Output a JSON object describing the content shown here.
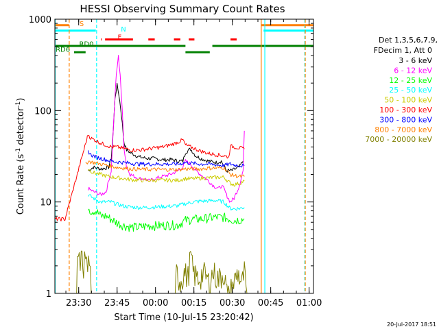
{
  "chart_data": {
    "type": "line",
    "title": "HESSI Observing Summary Count Rates",
    "xlabel": "Start Time (10-Jul-15 23:20:42)",
    "ylabel_main": "Count Rate (s",
    "ylabel_sup1": "-1",
    "ylabel_mid": " detector",
    "ylabel_sup2": "-1",
    "ylabel_end": ")",
    "footer": "20-Jul-2017 18:51",
    "y_scale": "log",
    "ylim": [
      1,
      1000
    ],
    "xlim_minutes": [
      0,
      101
    ],
    "x_ticks": [
      {
        "label": "23:30",
        "minute": 9.3
      },
      {
        "label": "23:45",
        "minute": 24.3
      },
      {
        "label": "00:00",
        "minute": 39.3
      },
      {
        "label": "00:15",
        "minute": 54.3
      },
      {
        "label": "00:30",
        "minute": 69.3
      },
      {
        "label": "00:45",
        "minute": 84.3
      },
      {
        "label": "01:00",
        "minute": 99.3
      }
    ],
    "y_ticks": [
      {
        "label": "1",
        "value": 1
      },
      {
        "label": "10",
        "value": 10
      },
      {
        "label": "100",
        "value": 100
      },
      {
        "label": "1000",
        "value": 1000
      }
    ],
    "legend_title_1": "Det 1,3,5,6,7,9,",
    "legend_title_2": "FDecim 1, Att 0",
    "series": [
      {
        "name": "3 - 6 keV",
        "color": "#000000",
        "points": [
          [
            13,
            22
          ],
          [
            15,
            24
          ],
          [
            18,
            23
          ],
          [
            21,
            24
          ],
          [
            22,
            30
          ],
          [
            22.8,
            60
          ],
          [
            23.5,
            140
          ],
          [
            24.3,
            190
          ],
          [
            25,
            150
          ],
          [
            26,
            90
          ],
          [
            27,
            45
          ],
          [
            28,
            37
          ],
          [
            30,
            34
          ],
          [
            33,
            31
          ],
          [
            36,
            30
          ],
          [
            38,
            30
          ],
          [
            42,
            29
          ],
          [
            46,
            29
          ],
          [
            48,
            28
          ],
          [
            50,
            28
          ],
          [
            51,
            35
          ],
          [
            53,
            38
          ],
          [
            55,
            32
          ],
          [
            57,
            30
          ],
          [
            60,
            28
          ],
          [
            63,
            27
          ],
          [
            65,
            28
          ],
          [
            67,
            22
          ],
          [
            69,
            22
          ],
          [
            72,
            24
          ],
          [
            73.5,
            28
          ]
        ]
      },
      {
        "name": "6 - 12 keV",
        "color": "#ff00ff",
        "points": [
          [
            13,
            14
          ],
          [
            15,
            13
          ],
          [
            18,
            12
          ],
          [
            20,
            13
          ],
          [
            22,
            22
          ],
          [
            23,
            80
          ],
          [
            24,
            250
          ],
          [
            24.8,
            390
          ],
          [
            25.5,
            250
          ],
          [
            26.3,
            100
          ],
          [
            27,
            40
          ],
          [
            28,
            24
          ],
          [
            29.5,
            20
          ],
          [
            31,
            19
          ],
          [
            33,
            18
          ],
          [
            35,
            18
          ],
          [
            37,
            17
          ],
          [
            39,
            18
          ],
          [
            42,
            19
          ],
          [
            45,
            20
          ],
          [
            48,
            22
          ],
          [
            50,
            24
          ],
          [
            51,
            28
          ],
          [
            53,
            26
          ],
          [
            55,
            22
          ],
          [
            56,
            21
          ],
          [
            58,
            19
          ],
          [
            60,
            17
          ],
          [
            62,
            15
          ],
          [
            64,
            14
          ],
          [
            65,
            15
          ],
          [
            66,
            14
          ],
          [
            67,
            12
          ],
          [
            68.5,
            10
          ],
          [
            70,
            11
          ],
          [
            72,
            15
          ],
          [
            73.5,
            22
          ],
          [
            74,
            60
          ]
        ]
      },
      {
        "name": "12 - 25 keV",
        "color": "#00ff00",
        "points": [
          [
            13,
            9
          ],
          [
            14,
            8
          ],
          [
            16,
            8
          ],
          [
            18,
            7
          ],
          [
            20,
            7
          ],
          [
            22,
            6.5
          ],
          [
            24,
            6
          ],
          [
            27,
            5.5
          ],
          [
            30,
            5.3
          ],
          [
            33,
            5.3
          ],
          [
            36,
            5.5
          ],
          [
            40,
            5.5
          ],
          [
            44,
            5.6
          ],
          [
            48,
            5.6
          ],
          [
            51,
            6.3
          ],
          [
            54,
            6.5
          ],
          [
            57,
            6.5
          ],
          [
            60,
            6.7
          ],
          [
            63,
            6.8
          ],
          [
            66,
            6.8
          ],
          [
            68.5,
            6.5
          ],
          [
            70,
            6.3
          ],
          [
            72,
            6.4
          ],
          [
            74,
            6.5
          ]
        ]
      },
      {
        "name": "25 - 50 keV",
        "color": "#00ffff",
        "points": [
          [
            13,
            12
          ],
          [
            15,
            11
          ],
          [
            18,
            10
          ],
          [
            20,
            10
          ],
          [
            22,
            10
          ],
          [
            24,
            9.5
          ],
          [
            27,
            9
          ],
          [
            30,
            8.8
          ],
          [
            33,
            8.7
          ],
          [
            36,
            8.7
          ],
          [
            39,
            8.8
          ],
          [
            42,
            8.9
          ],
          [
            45,
            9
          ],
          [
            48,
            9.1
          ],
          [
            51,
            9.6
          ],
          [
            54,
            10
          ],
          [
            57,
            10.2
          ],
          [
            60,
            10.3
          ],
          [
            63,
            10.4
          ],
          [
            66,
            10
          ],
          [
            68.5,
            8.5
          ],
          [
            70,
            8.4
          ],
          [
            72,
            8.5
          ],
          [
            74,
            8.7
          ]
        ]
      },
      {
        "name": "50 - 100 keV",
        "color": "#cccc00",
        "points": [
          [
            13,
            23
          ],
          [
            15,
            21
          ],
          [
            18,
            20
          ],
          [
            21,
            19
          ],
          [
            24,
            18.5
          ],
          [
            27,
            18
          ],
          [
            30,
            17.5
          ],
          [
            33,
            17.3
          ],
          [
            36,
            17.2
          ],
          [
            40,
            17.3
          ],
          [
            44,
            17.3
          ],
          [
            48,
            17.3
          ],
          [
            51,
            18
          ],
          [
            54,
            18
          ],
          [
            57,
            18.2
          ],
          [
            60,
            18.4
          ],
          [
            63,
            18.6
          ],
          [
            66,
            18.7
          ],
          [
            68.5,
            16
          ],
          [
            70,
            15.5
          ],
          [
            72,
            16
          ],
          [
            74,
            17
          ]
        ]
      },
      {
        "name": "100 - 300 keV",
        "color": "#ff0000",
        "points": [
          [
            0,
            6.5
          ],
          [
            1.5,
            6.5
          ],
          [
            3,
            6.5
          ],
          [
            4,
            6.5
          ],
          [
            13,
            55
          ],
          [
            14,
            50
          ],
          [
            16,
            47
          ],
          [
            18,
            44
          ],
          [
            20,
            42
          ],
          [
            22,
            40
          ],
          [
            24,
            40
          ],
          [
            26,
            39
          ],
          [
            28,
            38
          ],
          [
            30,
            37
          ],
          [
            33,
            37
          ],
          [
            36,
            38
          ],
          [
            39,
            39
          ],
          [
            42,
            40
          ],
          [
            45,
            42
          ],
          [
            48,
            45
          ],
          [
            50,
            48
          ],
          [
            51,
            42
          ],
          [
            53,
            40
          ],
          [
            55,
            38
          ],
          [
            57,
            36
          ],
          [
            60,
            34
          ],
          [
            63,
            33
          ],
          [
            66,
            32
          ],
          [
            68,
            31
          ],
          [
            68.5,
            41
          ],
          [
            70,
            40
          ],
          [
            72,
            39
          ],
          [
            74,
            38
          ]
        ]
      },
      {
        "name": "300 - 800 keV",
        "color": "#0000ff",
        "points": [
          [
            13,
            36
          ],
          [
            14,
            33
          ],
          [
            16,
            31
          ],
          [
            18,
            30
          ],
          [
            20,
            29
          ],
          [
            22,
            28
          ],
          [
            24,
            27.5
          ],
          [
            27,
            27
          ],
          [
            30,
            26.5
          ],
          [
            33,
            26
          ],
          [
            36,
            26
          ],
          [
            40,
            26
          ],
          [
            44,
            26
          ],
          [
            48,
            26
          ],
          [
            51,
            27
          ],
          [
            54,
            26.5
          ],
          [
            57,
            26
          ],
          [
            60,
            26
          ],
          [
            63,
            25.5
          ],
          [
            66,
            25
          ],
          [
            68.5,
            26
          ],
          [
            70,
            25.5
          ],
          [
            72,
            25
          ],
          [
            74,
            25
          ]
        ]
      },
      {
        "name": "800 - 7000 keV",
        "color": "#ff8000",
        "points": [
          [
            12,
            26
          ],
          [
            13,
            28
          ],
          [
            15,
            27
          ],
          [
            18,
            26
          ],
          [
            21,
            25
          ],
          [
            24,
            24
          ],
          [
            27,
            23.5
          ],
          [
            30,
            23
          ],
          [
            33,
            22.8
          ],
          [
            36,
            22.7
          ],
          [
            40,
            22.7
          ],
          [
            44,
            22.6
          ],
          [
            48,
            22.6
          ],
          [
            51,
            23
          ],
          [
            54,
            23
          ],
          [
            57,
            23
          ],
          [
            60,
            23.5
          ],
          [
            63,
            23.5
          ],
          [
            66,
            23.8
          ],
          [
            68.5,
            20
          ],
          [
            70,
            19.5
          ],
          [
            72,
            19
          ],
          [
            74,
            19
          ]
        ]
      },
      {
        "name": "7000 - 20000 keV",
        "color": "#808000",
        "points": [
          [
            8.5,
            1
          ],
          [
            8.8,
            2.9
          ],
          [
            9.5,
            2.4
          ],
          [
            10.3,
            2.9
          ],
          [
            11.2,
            2.2
          ],
          [
            12,
            2.9
          ],
          [
            12.8,
            2
          ],
          [
            13.5,
            2.9
          ],
          [
            14.2,
            1
          ],
          [
            47,
            1
          ],
          [
            47.5,
            1.9
          ],
          [
            49,
            1.5
          ],
          [
            50.5,
            1.9
          ],
          [
            52,
            1.7
          ],
          [
            53,
            2.9
          ],
          [
            54,
            1.9
          ],
          [
            56,
            1.6
          ],
          [
            58,
            1.9
          ],
          [
            60,
            1.5
          ],
          [
            62,
            1.9
          ],
          [
            64,
            1.6
          ],
          [
            66,
            1.9
          ],
          [
            67.5,
            1
          ],
          [
            71.5,
            1.9
          ],
          [
            73,
            1.4
          ],
          [
            74,
            1.9
          ],
          [
            75,
            1
          ]
        ]
      }
    ],
    "state_labels": [
      {
        "label": "S",
        "minute": 9.6,
        "value": 840,
        "color": "#ff8000"
      },
      {
        "label": "N",
        "minute": 25.8,
        "value": 730,
        "color": "#00ffff"
      },
      {
        "label": "F",
        "minute": 24.5,
        "value": 600,
        "color": "#ff0000"
      },
      {
        "label": "RD0",
        "minute": 9.5,
        "value": 505,
        "color": "#008000"
      },
      {
        "label": "RD6",
        "minute": 0.3,
        "value": 440,
        "color": "#008000"
      }
    ],
    "state_bars": [
      {
        "name": "saa",
        "color": "#ff8000",
        "value": 860,
        "segments": [
          [
            0,
            5.5
          ],
          [
            80.5,
            101
          ]
        ]
      },
      {
        "name": "night",
        "color": "#00ffff",
        "value": 750,
        "segments": [
          [
            0,
            16
          ],
          [
            81.5,
            101
          ]
        ]
      },
      {
        "name": "flare",
        "color": "#ff0000",
        "value": 600,
        "segments": [
          [
            18,
            18.3
          ],
          [
            19.6,
            30.5
          ],
          [
            36.5,
            39
          ],
          [
            46.5,
            49
          ],
          [
            52.3,
            54.5
          ],
          [
            68.6,
            71
          ]
        ]
      },
      {
        "name": "decimation-rd0",
        "color": "#008000",
        "value": 510,
        "segments": [
          [
            0,
            51
          ],
          [
            61.5,
            101
          ]
        ]
      },
      {
        "name": "decimation-rd6",
        "color": "#008000",
        "value": 435,
        "segments": [
          [
            0,
            0.2
          ],
          [
            7.5,
            12
          ],
          [
            51,
            60.5
          ]
        ]
      }
    ],
    "vlines": [
      {
        "name": "saa-boundary",
        "minute": 5.6,
        "color": "#ff8000",
        "dash": true
      },
      {
        "name": "night-boundary",
        "minute": 16.3,
        "color": "#00ffff",
        "dash": true
      },
      {
        "name": "data-end-saa",
        "minute": 80.6,
        "color": "#ff8000",
        "dash": false
      },
      {
        "name": "data-end-night",
        "minute": 82.0,
        "color": "#00ffff",
        "dash": false
      },
      {
        "name": "night-boundary-2",
        "minute": 97.6,
        "color": "#00ffff",
        "dash": true
      },
      {
        "name": "saa-boundary-2",
        "minute": 97.8,
        "color": "#ff8000",
        "dash": true
      },
      {
        "name": "plot-left-edge",
        "minute": 0.1,
        "color": "#00ffff",
        "dash": false
      }
    ]
  }
}
